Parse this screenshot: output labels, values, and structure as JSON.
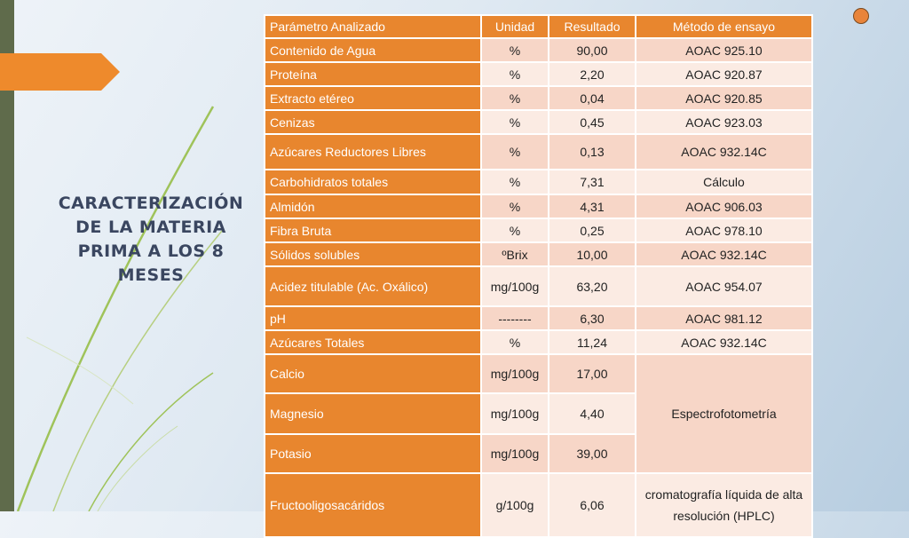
{
  "slide": {
    "title": "CARACTERIZACIÓN DE LA MATERIA PRIMA A LOS 8 MESES",
    "accent_color": "#e8862e",
    "decor_icon": "orange-circle-icon"
  },
  "table": {
    "headers": [
      "Parámetro Analizado",
      "Unidad",
      "Resultado",
      "Método de ensayo"
    ],
    "rows": [
      {
        "param": "Contenido de Agua",
        "unit": "%",
        "result": "90,00",
        "method": "AOAC 925.10"
      },
      {
        "param": "Proteína",
        "unit": "%",
        "result": "2,20",
        "method": "AOAC 920.87"
      },
      {
        "param": "Extracto etéreo",
        "unit": "%",
        "result": "0,04",
        "method": "AOAC 920.85"
      },
      {
        "param": "Cenizas",
        "unit": "%",
        "result": "0,45",
        "method": "AOAC 923.03"
      },
      {
        "param": "Azúcares Reductores Libres",
        "unit": "%",
        "result": "0,13",
        "method": "AOAC 932.14C"
      },
      {
        "param": "Carbohidratos totales",
        "unit": "%",
        "result": "7,31",
        "method": "Cálculo"
      },
      {
        "param": "Almidón",
        "unit": "%",
        "result": "4,31",
        "method": "AOAC 906.03"
      },
      {
        "param": "Fibra Bruta",
        "unit": "%",
        "result": "0,25",
        "method": "AOAC 978.10"
      },
      {
        "param": "Sólidos solubles",
        "unit": "ºBrix",
        "result": "10,00",
        "method": "AOAC 932.14C"
      },
      {
        "param": "Acidez titulable (Ac. Oxálico)",
        "unit": "mg/100g",
        "result": "63,20",
        "method": "AOAC 954.07"
      },
      {
        "param": "pH",
        "unit": "--------",
        "result": "6,30",
        "method": "AOAC 981.12"
      },
      {
        "param": "Azúcares Totales",
        "unit": "%",
        "result": "11,24",
        "method": "AOAC 932.14C"
      },
      {
        "param": "Calcio",
        "unit": "mg/100g",
        "result": "17,00"
      },
      {
        "param": "Magnesio",
        "unit": "mg/100g",
        "result": "4,40"
      },
      {
        "param": "Potasio",
        "unit": "mg/100g",
        "result": "39,00"
      },
      {
        "param": "Fructooligosacáridos",
        "unit": "g/100g",
        "result": "6,06",
        "method": "cromatografía líquida de alta resolución (HPLC)"
      }
    ],
    "spectro_method": "Espectrofotometría"
  }
}
